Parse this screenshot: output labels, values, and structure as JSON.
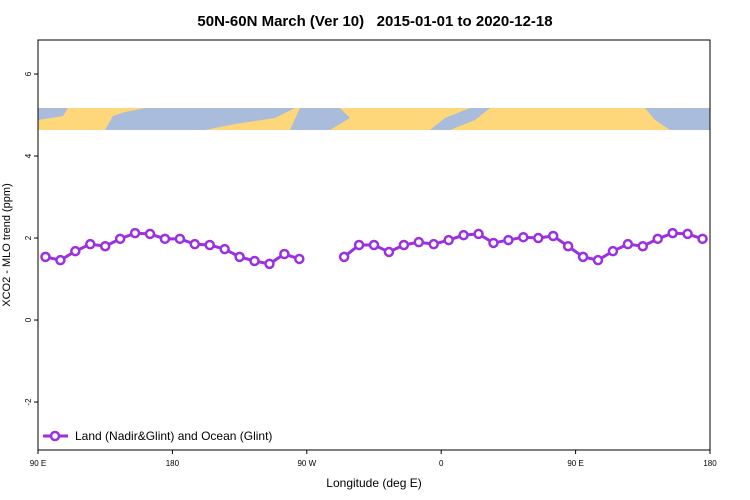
{
  "chart_data": {
    "type": "line",
    "title": "50N-60N March (Ver 10)   2015-01-01 to 2020-12-18",
    "xlabel": "Longitude (deg E)",
    "ylabel": "XCO2 - MLO trend (ppm)",
    "x": [
      95,
      105,
      115,
      125,
      135,
      145,
      155,
      165,
      175,
      185,
      195,
      205,
      215,
      225,
      235,
      245,
      255,
      265,
      275,
      285,
      295,
      305,
      315,
      325,
      335,
      345,
      355,
      365,
      375,
      385,
      395,
      405,
      415,
      425,
      435,
      445,
      455,
      465,
      475,
      485,
      495,
      505,
      515,
      525,
      535
    ],
    "series": [
      {
        "name": "Land (Nadir&Glint) and Ocean (Glint)",
        "color": "#9b30e0",
        "values": [
          1.54,
          1.46,
          1.68,
          1.85,
          1.8,
          1.98,
          2.12,
          2.1,
          1.98,
          1.98,
          1.85,
          1.83,
          1.73,
          1.54,
          1.44,
          1.37,
          1.61,
          1.49,
          null,
          null,
          1.54,
          1.83,
          1.83,
          1.66,
          1.83,
          1.9,
          1.85,
          1.95,
          2.07,
          2.1,
          1.88,
          1.95,
          2.02,
          2.0,
          2.05,
          1.8,
          1.54,
          1.46,
          1.68,
          1.85,
          1.8,
          1.98,
          2.12,
          2.1,
          1.98
        ]
      }
    ],
    "xlim": [
      90,
      540
    ],
    "xticks": [
      {
        "value": 90,
        "label": "90 E"
      },
      180,
      {
        "value": 270,
        "label": "90 W"
      },
      {
        "value": 360,
        "label": "0"
      },
      {
        "value": 450,
        "label": "90 E"
      },
      {
        "value": 540,
        "label": "180"
      }
    ],
    "ylim": [
      -3.17,
      6.83
    ],
    "yticks": [
      -2,
      0,
      2,
      4,
      6
    ],
    "legend": "bottom-left"
  }
}
